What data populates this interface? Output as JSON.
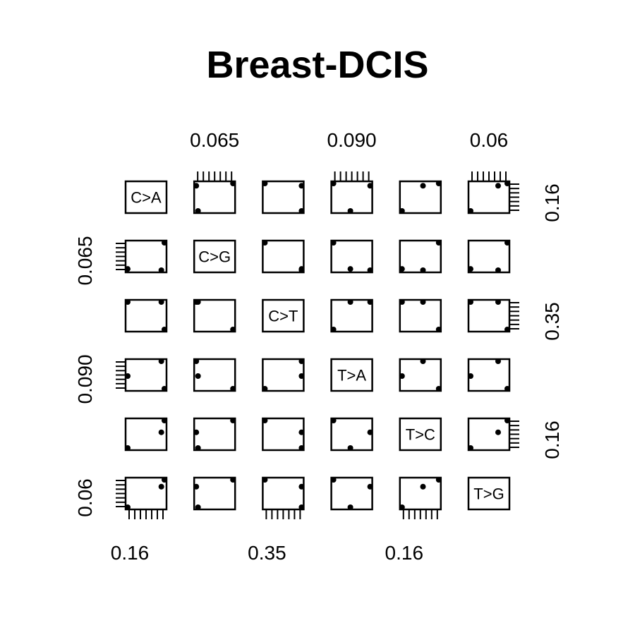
{
  "title": "Breast-DCIS",
  "chart_data": {
    "type": "scatter",
    "title": "Breast-DCIS",
    "variables": [
      "C>A",
      "C>G",
      "C>T",
      "T>A",
      "T>C",
      "T>G"
    ],
    "observations": [
      {
        "C>A": 0.158,
        "C>G": 0.063,
        "C>T": 0.321,
        "T>A": 0.078,
        "T>C": 0.16,
        "T>G": 0.06
      },
      {
        "C>A": 0.146,
        "C>G": 0.043,
        "C>T": 0.341,
        "T>A": 0.084,
        "T>C": 0.139,
        "T>G": 0.052
      },
      {
        "C>A": 0.157,
        "C>G": 0.042,
        "C>T": 0.341,
        "T>A": 0.091,
        "T>C": 0.151,
        "T>G": 0.058
      }
    ],
    "axis_ticks": {
      "top": [
        {
          "column": 1,
          "label": "0.065"
        },
        {
          "column": 3,
          "label": "0.090"
        },
        {
          "column": 5,
          "label": "0.06"
        }
      ],
      "bottom": [
        {
          "column": 0,
          "label": "0.16"
        },
        {
          "column": 2,
          "label": "0.35"
        },
        {
          "column": 4,
          "label": "0.16"
        }
      ],
      "left": [
        {
          "row": 1,
          "label": "0.065"
        },
        {
          "row": 3,
          "label": "0.090"
        },
        {
          "row": 5,
          "label": "0.06"
        }
      ],
      "right": [
        {
          "row": 0,
          "label": "0.16"
        },
        {
          "row": 2,
          "label": "0.35"
        },
        {
          "row": 4,
          "label": "0.16"
        }
      ]
    },
    "grid": false,
    "legend": "none"
  }
}
